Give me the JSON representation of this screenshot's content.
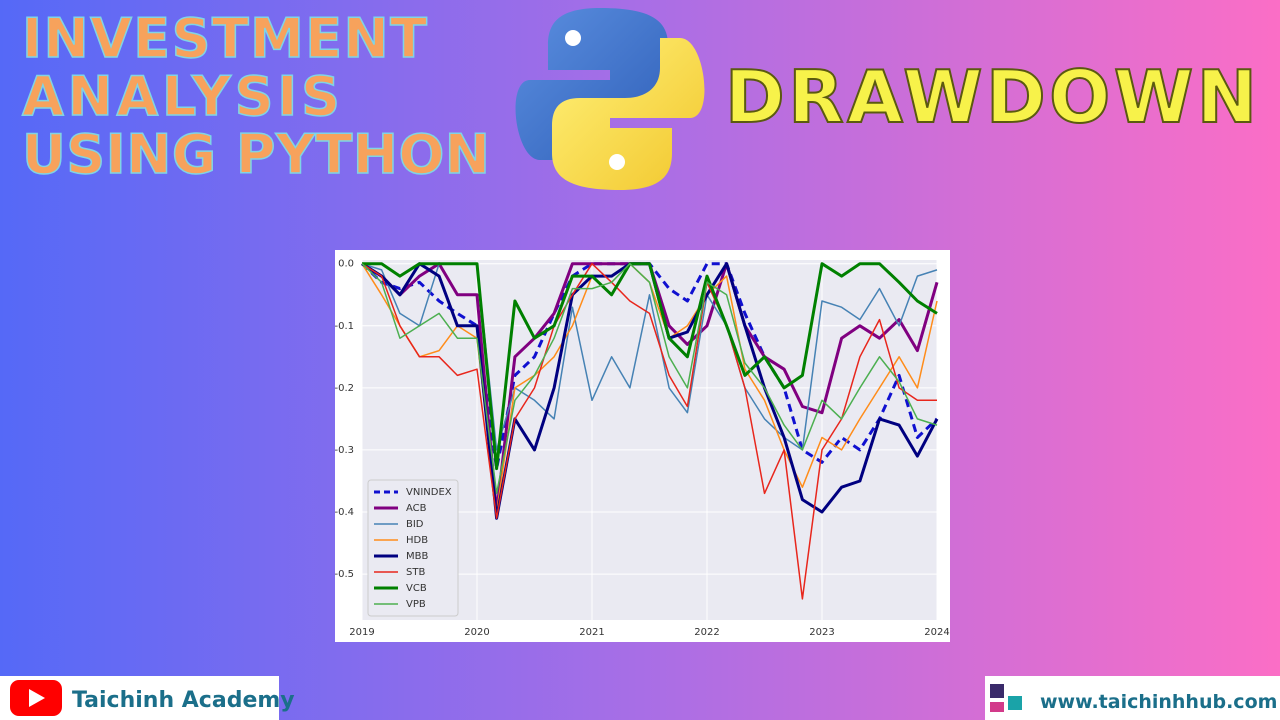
{
  "header": {
    "title_lines": [
      "INVESTMENT",
      "ANALYSIS",
      "USING PYTHON"
    ],
    "topic": "DRAWDOWN"
  },
  "footer": {
    "channel": "Taichinh Academy",
    "website": "www.taichinhhub.com"
  },
  "chart_data": {
    "type": "line",
    "x": [
      2019,
      2019.17,
      2019.33,
      2019.5,
      2019.67,
      2019.83,
      2020,
      2020.17,
      2020.33,
      2020.5,
      2020.67,
      2020.83,
      2021,
      2021.17,
      2021.33,
      2021.5,
      2021.67,
      2021.83,
      2022,
      2022.17,
      2022.33,
      2022.5,
      2022.67,
      2022.83,
      2023,
      2023.17,
      2023.33,
      2023.5,
      2023.67,
      2023.83,
      2024
    ],
    "xlim": [
      2019,
      2024
    ],
    "xticks": [
      2019,
      2020,
      2021,
      2022,
      2023,
      2024
    ],
    "ylim": [
      -0.574,
      0.006
    ],
    "yticks": [
      {
        "value": 0,
        "label": "0.0"
      },
      -0.1,
      -0.2,
      -0.3,
      -0.4,
      -0.5
    ],
    "grid": true,
    "legend": "lower left",
    "series": [
      {
        "name": "VNINDEX",
        "color": "#1010d0",
        "linewidth": 3,
        "linestyle": "dashed",
        "values": [
          0,
          -0.03,
          -0.04,
          -0.03,
          -0.06,
          -0.08,
          -0.1,
          -0.33,
          -0.18,
          -0.15,
          -0.08,
          -0.02,
          0,
          0,
          0,
          0,
          -0.04,
          -0.06,
          0,
          0,
          -0.08,
          -0.15,
          -0.2,
          -0.3,
          -0.32,
          -0.28,
          -0.3,
          -0.25,
          -0.18,
          -0.28,
          -0.25
        ]
      },
      {
        "name": "ACB",
        "color": "#800080",
        "linewidth": 3,
        "values": [
          0,
          -0.02,
          -0.05,
          -0.02,
          0,
          -0.05,
          -0.05,
          -0.4,
          -0.15,
          -0.12,
          -0.08,
          0,
          0,
          0,
          0,
          0,
          -0.1,
          -0.13,
          -0.1,
          0,
          -0.1,
          -0.15,
          -0.17,
          -0.23,
          -0.24,
          -0.12,
          -0.1,
          -0.12,
          -0.09,
          -0.14,
          -0.03
        ]
      },
      {
        "name": "BID",
        "color": "#4682b4",
        "linewidth": 1.5,
        "values": [
          0,
          -0.01,
          -0.08,
          -0.1,
          0,
          0,
          0,
          -0.3,
          -0.2,
          -0.22,
          -0.25,
          -0.07,
          -0.22,
          -0.15,
          -0.2,
          -0.05,
          -0.2,
          -0.24,
          -0.05,
          -0.1,
          -0.2,
          -0.25,
          -0.28,
          -0.3,
          -0.06,
          -0.07,
          -0.09,
          -0.04,
          -0.1,
          -0.02,
          -0.01
        ]
      },
      {
        "name": "HDB",
        "color": "#ff8c1a",
        "linewidth": 1.5,
        "values": [
          0,
          -0.05,
          -0.1,
          -0.15,
          -0.14,
          -0.1,
          -0.12,
          -0.4,
          -0.2,
          -0.18,
          -0.15,
          -0.1,
          -0.02,
          -0.05,
          0,
          -0.03,
          -0.12,
          -0.1,
          -0.05,
          -0.02,
          -0.17,
          -0.22,
          -0.3,
          -0.36,
          -0.28,
          -0.3,
          -0.25,
          -0.2,
          -0.15,
          -0.2,
          -0.06
        ]
      },
      {
        "name": "MBB",
        "color": "#000080",
        "linewidth": 3,
        "values": [
          0,
          -0.02,
          -0.05,
          0,
          -0.02,
          -0.1,
          -0.1,
          -0.41,
          -0.25,
          -0.3,
          -0.2,
          -0.05,
          -0.02,
          -0.02,
          0,
          0,
          -0.12,
          -0.11,
          -0.05,
          0,
          -0.1,
          -0.2,
          -0.28,
          -0.38,
          -0.4,
          -0.36,
          -0.35,
          -0.25,
          -0.26,
          -0.31,
          -0.25
        ]
      },
      {
        "name": "STB",
        "color": "#e8261c",
        "linewidth": 1.5,
        "values": [
          0,
          -0.02,
          -0.1,
          -0.15,
          -0.15,
          -0.18,
          -0.17,
          -0.41,
          -0.25,
          -0.2,
          -0.1,
          -0.05,
          0,
          -0.03,
          -0.06,
          -0.08,
          -0.18,
          -0.23,
          -0.03,
          -0.1,
          -0.2,
          -0.37,
          -0.3,
          -0.54,
          -0.3,
          -0.25,
          -0.15,
          -0.09,
          -0.2,
          -0.22,
          -0.22
        ]
      },
      {
        "name": "VCB",
        "color": "#008000",
        "linewidth": 3,
        "values": [
          0,
          0,
          -0.02,
          0,
          0,
          0,
          0,
          -0.33,
          -0.06,
          -0.12,
          -0.1,
          -0.02,
          -0.02,
          -0.05,
          0,
          0,
          -0.12,
          -0.15,
          -0.02,
          -0.1,
          -0.18,
          -0.15,
          -0.2,
          -0.18,
          0,
          -0.02,
          0,
          0,
          -0.03,
          -0.06,
          -0.08
        ]
      },
      {
        "name": "VPB",
        "color": "#4caf50",
        "linewidth": 1.5,
        "values": [
          0,
          -0.03,
          -0.12,
          -0.1,
          -0.08,
          -0.12,
          -0.12,
          -0.37,
          -0.22,
          -0.18,
          -0.12,
          -0.04,
          -0.04,
          -0.03,
          0,
          -0.03,
          -0.15,
          -0.2,
          -0.03,
          -0.05,
          -0.16,
          -0.2,
          -0.26,
          -0.3,
          -0.22,
          -0.25,
          -0.2,
          -0.15,
          -0.19,
          -0.25,
          -0.26
        ]
      }
    ]
  }
}
